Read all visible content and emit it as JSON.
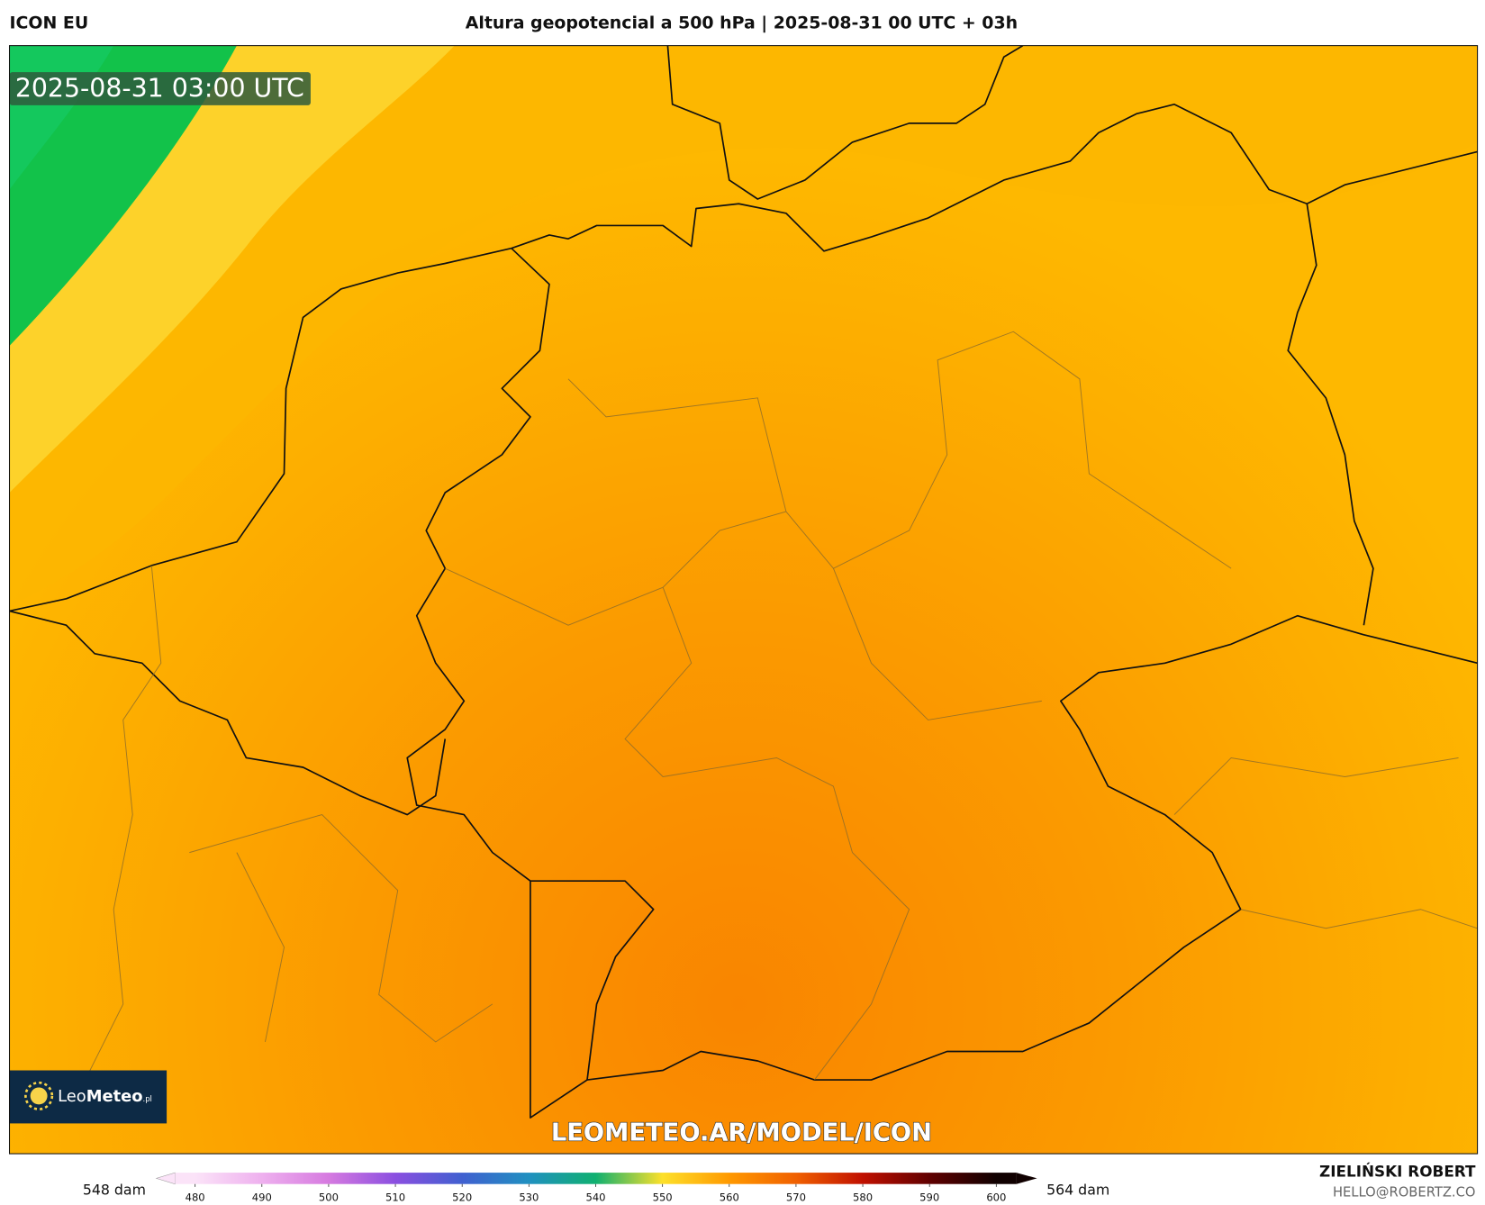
{
  "header": {
    "model": "ICON EU",
    "title": "Altura geopotencial a 500 hPa | 2025-08-31 00 UTC + 03h"
  },
  "map": {
    "valid_time": "2025-08-31 03:00 UTC",
    "watermark": "LEOMETEO.AR/MODEL/ICON",
    "logo": {
      "first": "Leo",
      "second": "Meteo",
      "suffix": ".pl"
    }
  },
  "legend": {
    "min_label": "548 dam",
    "max_label": "564 dam",
    "ticks": [
      480,
      490,
      500,
      510,
      520,
      530,
      540,
      550,
      560,
      570,
      580,
      590,
      600
    ],
    "colors": [
      "#fbe3f8",
      "#eeb0ee",
      "#d67ae0",
      "#8a4fe0",
      "#4060d0",
      "#2090c0",
      "#10b070",
      "#fde02a",
      "#ff9900",
      "#f06000",
      "#c01000",
      "#600000",
      "#100000"
    ]
  },
  "credit": {
    "author": "ZIELIŃSKI ROBERT",
    "contact": "HELLO@ROBERTZ.CO"
  }
}
